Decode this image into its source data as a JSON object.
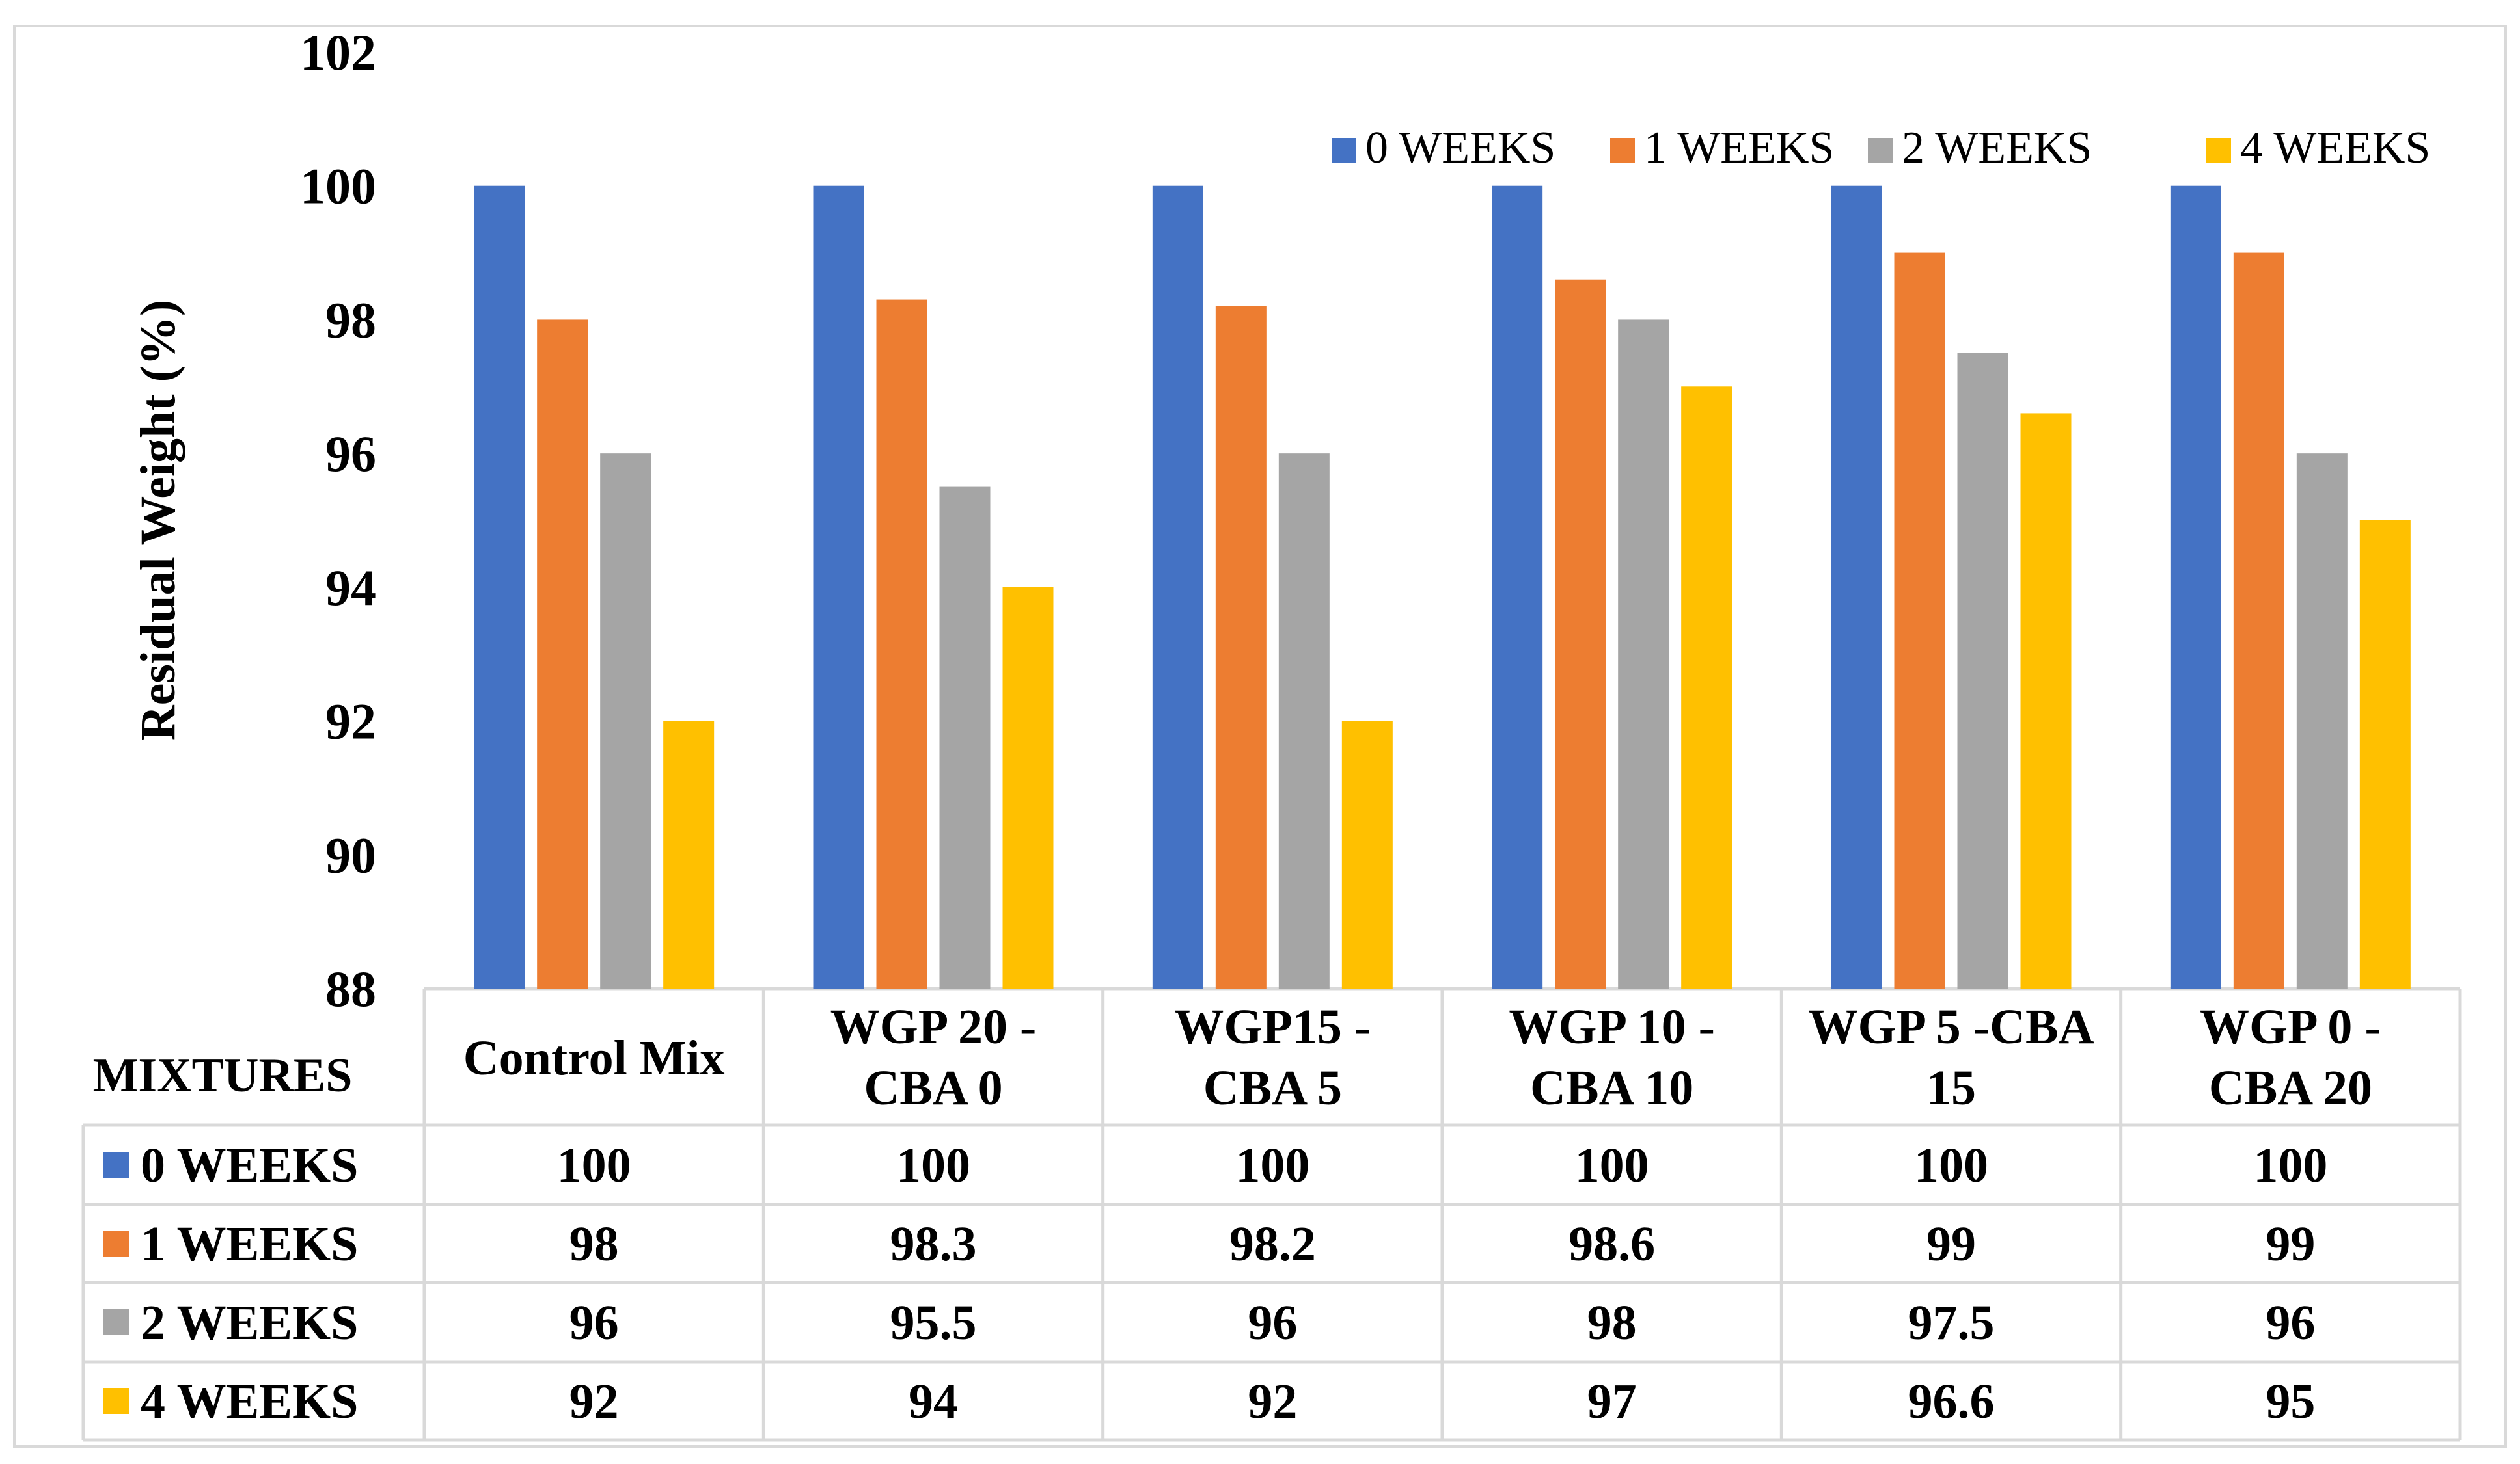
{
  "chart_data": {
    "type": "bar",
    "title": "",
    "xlabel": "",
    "ylabel": "Residual Weight (%)",
    "ylim": [
      88,
      102
    ],
    "yticks": [
      "88",
      "90",
      "92",
      "94",
      "96",
      "98",
      "100",
      "102"
    ],
    "categories": [
      [
        "Control Mix"
      ],
      [
        "WGP 20 -",
        "CBA 0"
      ],
      [
        "WGP15 -",
        "CBA 5"
      ],
      [
        "WGP 10 -",
        "CBA 10"
      ],
      [
        "WGP 5 -CBA",
        "15"
      ],
      [
        "WGP 0 -",
        "CBA 20"
      ]
    ],
    "series": [
      {
        "name": "0 WEEKS",
        "color": "#4472C4",
        "values": [
          100,
          100,
          100,
          100,
          100,
          100
        ],
        "labels": [
          "100",
          "100",
          "100",
          "100",
          "100",
          "100"
        ]
      },
      {
        "name": "1 WEEKS",
        "color": "#ED7D31",
        "values": [
          98,
          98.3,
          98.2,
          98.6,
          99,
          99
        ],
        "labels": [
          "98",
          "98.3",
          "98.2",
          "98.6",
          "99",
          "99"
        ]
      },
      {
        "name": "2 WEEKS",
        "color": "#A5A5A5",
        "values": [
          96,
          95.5,
          96,
          98,
          97.5,
          96
        ],
        "labels": [
          "96",
          "95.5",
          "96",
          "98",
          "97.5",
          "96"
        ]
      },
      {
        "name": "4 WEEKS",
        "color": "#FFC000",
        "values": [
          92,
          94,
          92,
          97,
          96.6,
          95
        ],
        "labels": [
          "92",
          "94",
          "92",
          "97",
          "96.6",
          "95"
        ]
      }
    ],
    "legend_position": "top-right",
    "data_table": {
      "header_label": "MIXTURES"
    }
  }
}
